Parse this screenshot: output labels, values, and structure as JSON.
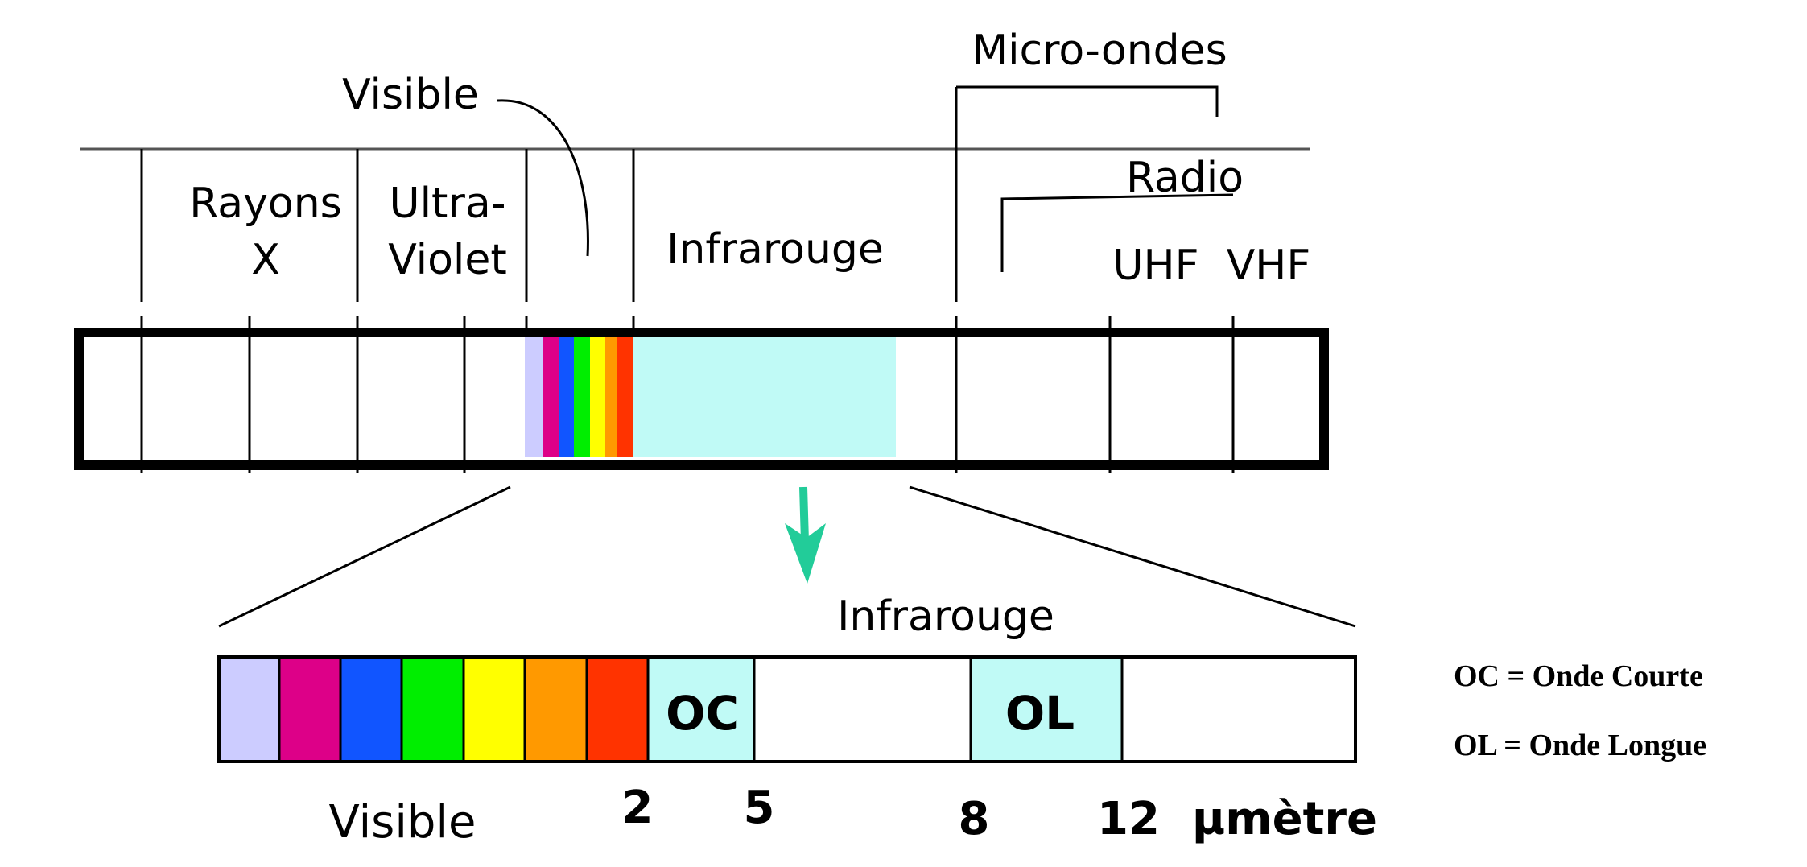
{
  "labels": {
    "visible_top": "Visible",
    "microondes": "Micro-ondes",
    "rayons_line1": "Rayons",
    "rayons_line2": "X",
    "ultra_line1": "Ultra-",
    "ultra_line2": "Violet",
    "infrarouge_top": "Infrarouge",
    "radio": "Radio",
    "uhf": "UHF",
    "vhf": "VHF",
    "infrarouge_bottom": "Infrarouge",
    "oc": "OC",
    "ol": "OL",
    "visible_bottom": "Visible",
    "tick_2": "2",
    "tick_5": "5",
    "tick_8": "8",
    "tick_12": "12",
    "unit": "µmètre"
  },
  "legend": {
    "oc": "OC = Onde Courte",
    "ol": "OL = Onde Longue"
  },
  "colors": {
    "spectrum": [
      "#ccccff",
      "#dd0088",
      "#1155ff",
      "#00ee00",
      "#ffff00",
      "#ff9900",
      "#ff3300"
    ],
    "infrared": "#c0faf6",
    "arrow": "#22cc99",
    "line": "#000000"
  }
}
